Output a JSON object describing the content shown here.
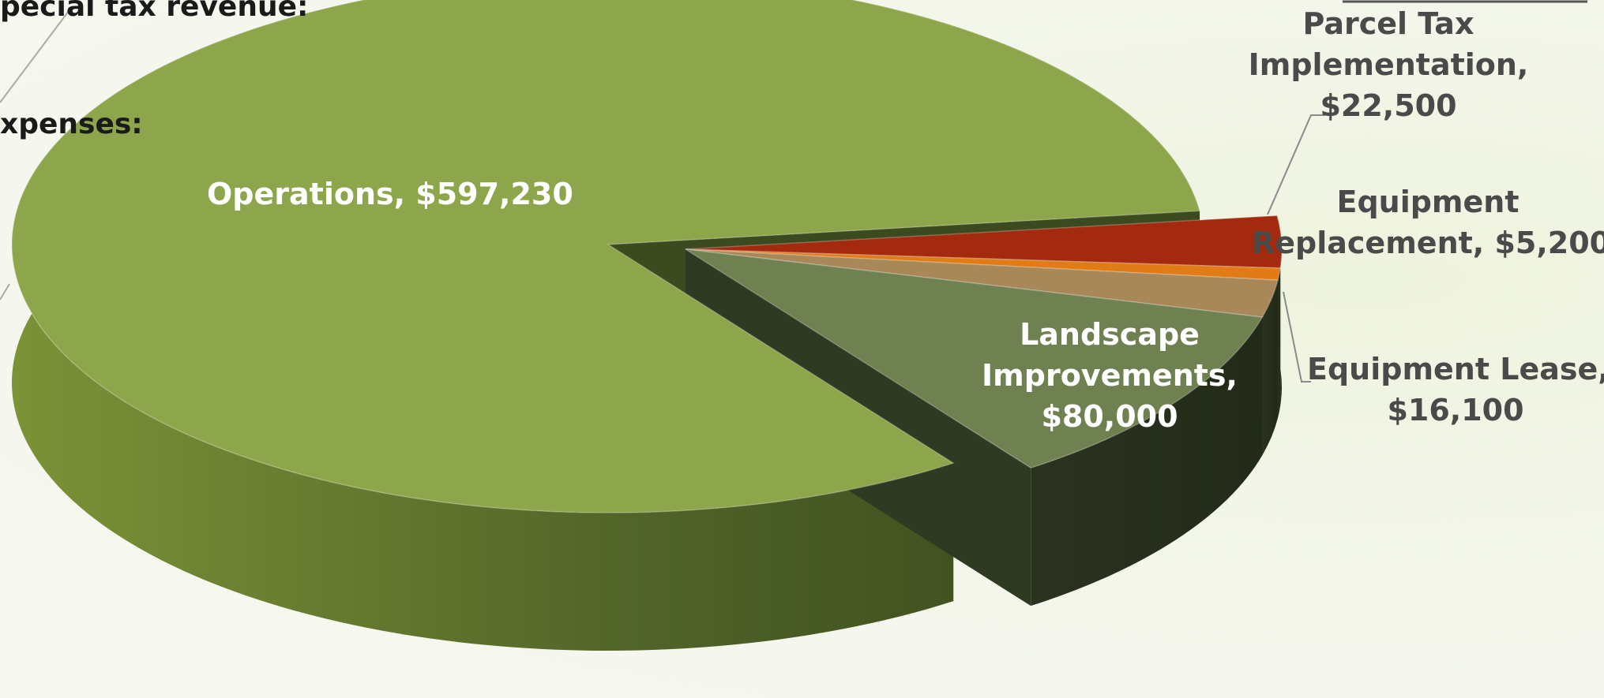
{
  "page_text": {
    "cut_line_1": "pecial tax revenue:",
    "cut_line_2": "xpenses:"
  },
  "chart_data": {
    "type": "pie",
    "style": "3d-exploded",
    "title": "",
    "slices": [
      {
        "label": "Operations",
        "value": 597230,
        "display": "Operations,  $597,230",
        "color": "#8ea64b"
      },
      {
        "label": "Landscape Improvements",
        "value": 80000,
        "display": [
          "Landscape",
          "Improvements,",
          "$80,000"
        ],
        "color": "#6f8150"
      },
      {
        "label": "Equipment Lease",
        "value": 16100,
        "display": [
          "Equipment Lease,",
          "$16,100"
        ],
        "color": "#a88859"
      },
      {
        "label": "Equipment Replacement",
        "value": 5200,
        "display": [
          "Equipment",
          "Replacement,  $5,200"
        ],
        "color": "#e07b15"
      },
      {
        "label": "Parcel Tax Implementation",
        "value": 22500,
        "display": [
          "Parcel Tax",
          "Implementation,",
          "$22,500"
        ],
        "color": "#a3290f"
      }
    ]
  }
}
